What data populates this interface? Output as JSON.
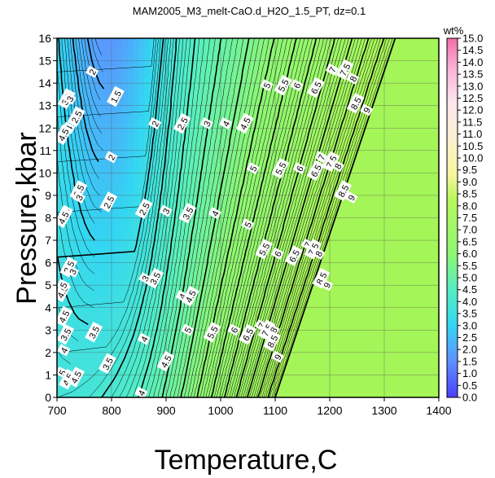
{
  "chart_data": {
    "type": "heatmap",
    "title": "MAM2005_M3_melt-CaO.d_H2O_1.5_PT, dz=0.1",
    "xlabel": "Temperature,C",
    "ylabel": "Pressure,kbar",
    "xlim": [
      700,
      1400
    ],
    "ylim": [
      0,
      16
    ],
    "x_ticks": [
      "700",
      "800",
      "900",
      "1000",
      "1100",
      "1200",
      "1300",
      "1400"
    ],
    "y_ticks": [
      "0",
      "1",
      "2",
      "3",
      "4",
      "5",
      "6",
      "7",
      "8",
      "9",
      "10",
      "11",
      "12",
      "13",
      "14",
      "15",
      "16"
    ],
    "grid": true,
    "colorbar": {
      "title": "wt%",
      "range": [
        0,
        15
      ],
      "ticks": [
        "0.0",
        "0.5",
        "1.0",
        "1.5",
        "2.0",
        "2.5",
        "3.0",
        "3.5",
        "4.0",
        "4.5",
        "5.0",
        "5.5",
        "6.0",
        "6.5",
        "7.0",
        "7.5",
        "8.0",
        "8.5",
        "9.0",
        "9.5",
        "10.0",
        "10.5",
        "11.0",
        "11.5",
        "12.0",
        "12.5",
        "13.0",
        "13.5",
        "14.0",
        "14.5",
        "15.0"
      ]
    },
    "plateau_value": 9.5,
    "contour_labels": [
      {
        "text": "1.5",
        "t": 808,
        "p": 13.4
      },
      {
        "text": "2",
        "t": 765,
        "p": 14.5
      },
      {
        "text": "2",
        "t": 880,
        "p": 12.2
      },
      {
        "text": "2",
        "t": 800,
        "p": 10.7
      },
      {
        "text": "2.5",
        "t": 930,
        "p": 12.2
      },
      {
        "text": "2.5",
        "t": 795,
        "p": 8.7
      },
      {
        "text": "2.5",
        "t": 860,
        "p": 8.4
      },
      {
        "text": "3",
        "t": 975,
        "p": 12.2
      },
      {
        "text": "3",
        "t": 900,
        "p": 8.3
      },
      {
        "text": "3",
        "t": 862,
        "p": 5.3
      },
      {
        "text": "3.5",
        "t": 940,
        "p": 8.2
      },
      {
        "text": "3.5",
        "t": 880,
        "p": 5.3
      },
      {
        "text": "3.5",
        "t": 768,
        "p": 2.9
      },
      {
        "text": "3.5",
        "t": 793,
        "p": 1.5
      },
      {
        "text": "4",
        "t": 1010,
        "p": 12.2
      },
      {
        "text": "4",
        "t": 990,
        "p": 8.2
      },
      {
        "text": "4",
        "t": 930,
        "p": 4.5
      },
      {
        "text": "4",
        "t": 860,
        "p": 2.6
      },
      {
        "text": "4",
        "t": 855,
        "p": 0.2
      },
      {
        "text": "4.5",
        "t": 1045,
        "p": 12.2
      },
      {
        "text": "4.5",
        "t": 945,
        "p": 4.5
      },
      {
        "text": "4.5",
        "t": 900,
        "p": 1.6
      },
      {
        "text": "5",
        "t": 1085,
        "p": 13.9
      },
      {
        "text": "5",
        "t": 1060,
        "p": 10.2
      },
      {
        "text": "5",
        "t": 1050,
        "p": 7.7
      },
      {
        "text": "5",
        "t": 940,
        "p": 3.0
      },
      {
        "text": "5.5",
        "t": 1115,
        "p": 13.9
      },
      {
        "text": "5.5",
        "t": 1110,
        "p": 10.2
      },
      {
        "text": "5.5",
        "t": 1080,
        "p": 6.6
      },
      {
        "text": "5.5",
        "t": 985,
        "p": 2.9
      },
      {
        "text": "6",
        "t": 1140,
        "p": 13.9
      },
      {
        "text": "6",
        "t": 1145,
        "p": 10.2
      },
      {
        "text": "6",
        "t": 1105,
        "p": 6.4
      },
      {
        "text": "6",
        "t": 1025,
        "p": 3.0
      },
      {
        "text": "6.5",
        "t": 1175,
        "p": 13.8
      },
      {
        "text": "6.5",
        "t": 1175,
        "p": 10.1
      },
      {
        "text": "6.5",
        "t": 1135,
        "p": 6.3
      },
      {
        "text": "6.5",
        "t": 1050,
        "p": 2.8
      },
      {
        "text": "7",
        "t": 1205,
        "p": 14.6
      },
      {
        "text": "7",
        "t": 1185,
        "p": 10.7
      },
      {
        "text": "7",
        "t": 1160,
        "p": 6.8
      },
      {
        "text": "7",
        "t": 1075,
        "p": 3.2
      },
      {
        "text": "7.5",
        "t": 1228,
        "p": 14.6
      },
      {
        "text": "7.5",
        "t": 1203,
        "p": 10.5
      },
      {
        "text": "7.5",
        "t": 1170,
        "p": 6.6
      },
      {
        "text": "7.5",
        "t": 1085,
        "p": 3.0
      },
      {
        "text": "8",
        "t": 1243,
        "p": 14.2
      },
      {
        "text": "8",
        "t": 1215,
        "p": 10.3
      },
      {
        "text": "8",
        "t": 1180,
        "p": 6.4
      },
      {
        "text": "8",
        "t": 1097,
        "p": 3.0
      },
      {
        "text": "8.5",
        "t": 1248,
        "p": 13.1
      },
      {
        "text": "8.5",
        "t": 1225,
        "p": 9.2
      },
      {
        "text": "8.5",
        "t": 1185,
        "p": 5.3
      },
      {
        "text": "8.5",
        "t": 1095,
        "p": 2.5
      },
      {
        "text": "9",
        "t": 1268,
        "p": 12.8
      },
      {
        "text": "9",
        "t": 1240,
        "p": 8.9
      },
      {
        "text": "9",
        "t": 1195,
        "p": 5.0
      },
      {
        "text": "9",
        "t": 1105,
        "p": 1.8
      },
      {
        "text": "3.5",
        "t": 718,
        "p": 13.3
      },
      {
        "text": "3",
        "t": 724,
        "p": 13.3
      },
      {
        "text": "2.5",
        "t": 736,
        "p": 12.5
      },
      {
        "text": "4",
        "t": 722,
        "p": 12.0
      },
      {
        "text": "4.5",
        "t": 712,
        "p": 11.7
      },
      {
        "text": "3.5",
        "t": 740,
        "p": 9.2
      },
      {
        "text": "3",
        "t": 741,
        "p": 8.9
      },
      {
        "text": "4",
        "t": 718,
        "p": 8.3
      },
      {
        "text": "4.5",
        "t": 712,
        "p": 8.0
      },
      {
        "text": "3.5",
        "t": 722,
        "p": 5.8
      },
      {
        "text": "3",
        "t": 729,
        "p": 5.6
      },
      {
        "text": "4.5",
        "t": 710,
        "p": 4.7
      },
      {
        "text": "5",
        "t": 712,
        "p": 5.0
      },
      {
        "text": "4.5",
        "t": 713,
        "p": 3.6
      },
      {
        "text": "3.5",
        "t": 716,
        "p": 2.8
      },
      {
        "text": "4",
        "t": 713,
        "p": 2.1
      },
      {
        "text": "5",
        "t": 710,
        "p": 1.1
      },
      {
        "text": "4.5",
        "t": 720,
        "p": 0.8
      },
      {
        "text": "4.5",
        "t": 735,
        "p": 0.9
      }
    ]
  }
}
